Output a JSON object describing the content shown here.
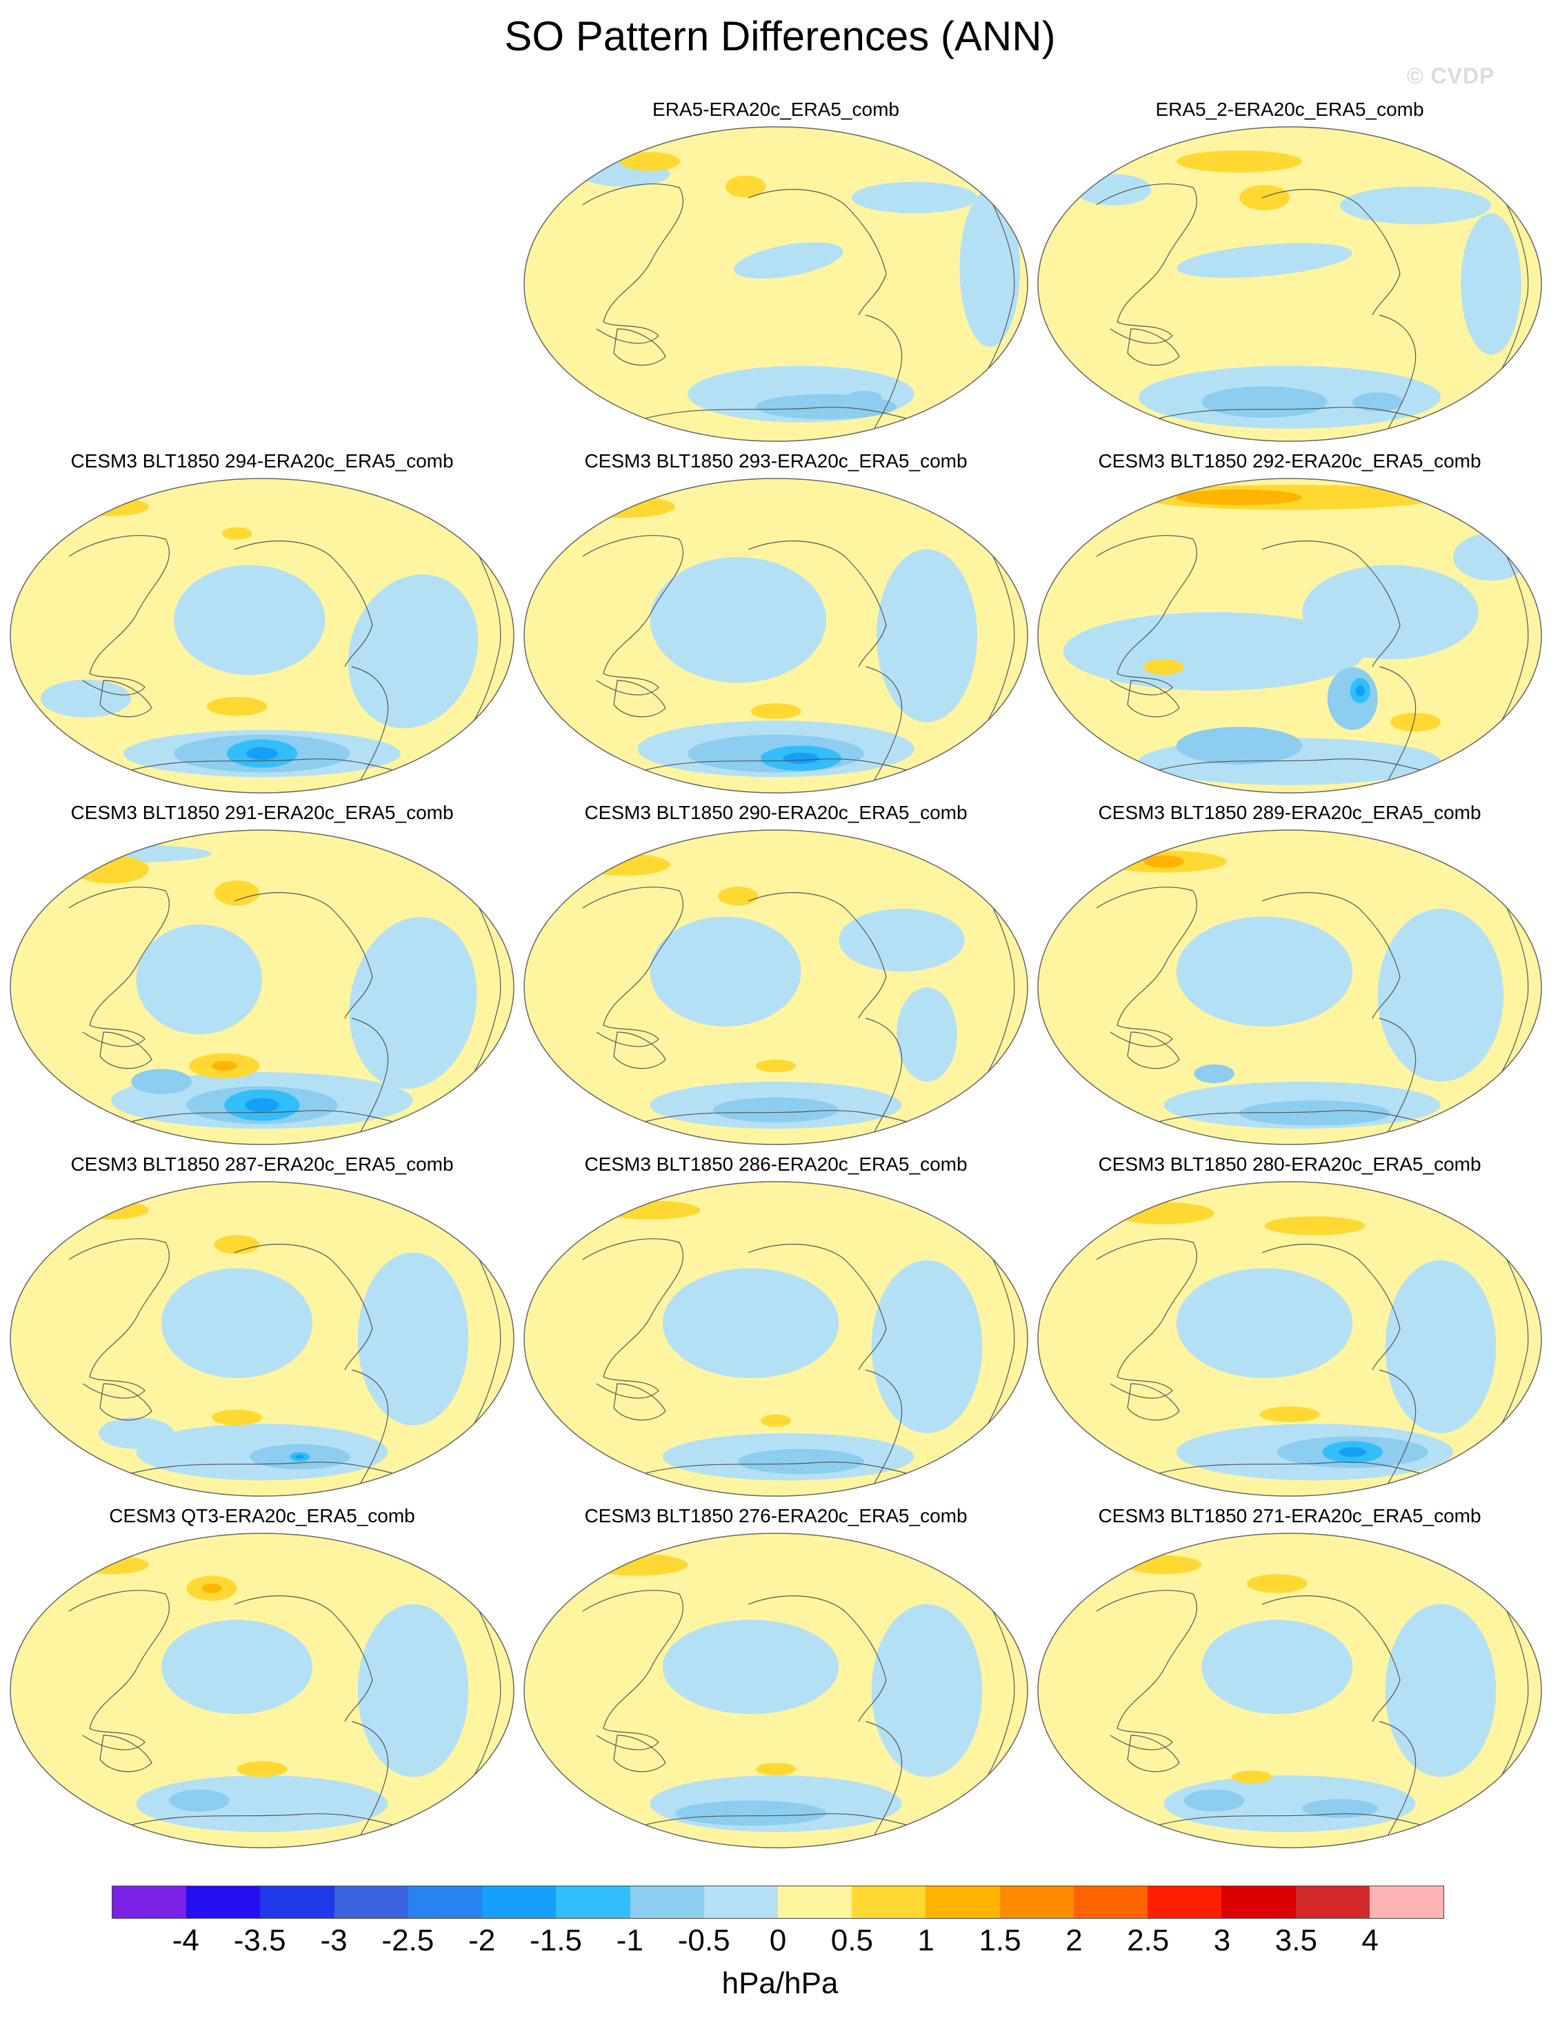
{
  "title": "SO Pattern Differences (ANN)",
  "watermark": "© CVDP",
  "panels": [
    {
      "title": "ERA5-ERA20c_ERA5_comb",
      "variant": 0
    },
    {
      "title": "ERA5_2-ERA20c_ERA5_comb",
      "variant": 1
    },
    {
      "title": "CESM3 BLT1850 294-ERA20c_ERA5_comb",
      "variant": 2
    },
    {
      "title": "CESM3 BLT1850 293-ERA20c_ERA5_comb",
      "variant": 3
    },
    {
      "title": "CESM3 BLT1850 292-ERA20c_ERA5_comb",
      "variant": 4
    },
    {
      "title": "CESM3 BLT1850 291-ERA20c_ERA5_comb",
      "variant": 5
    },
    {
      "title": "CESM3 BLT1850 290-ERA20c_ERA5_comb",
      "variant": 6
    },
    {
      "title": "CESM3 BLT1850 289-ERA20c_ERA5_comb",
      "variant": 7
    },
    {
      "title": "CESM3 BLT1850 287-ERA20c_ERA5_comb",
      "variant": 8
    },
    {
      "title": "CESM3 BLT1850 286-ERA20c_ERA5_comb",
      "variant": 9
    },
    {
      "title": "CESM3 BLT1850 280-ERA20c_ERA5_comb",
      "variant": 10
    },
    {
      "title": "CESM3 QT3-ERA20c_ERA5_comb",
      "variant": 11
    },
    {
      "title": "CESM3 BLT1850 276-ERA20c_ERA5_comb",
      "variant": 12
    },
    {
      "title": "CESM3 BLT1850 271-ERA20c_ERA5_comb",
      "variant": 13
    }
  ],
  "colorbar": {
    "colors": [
      "#7a22e6",
      "#2410f0",
      "#1e3ae8",
      "#3c64dc",
      "#2882f0",
      "#14a0f8",
      "#32befa",
      "#8ccdf0",
      "#b4e0f5",
      "#fff5a0",
      "#ffd932",
      "#ffb400",
      "#ff8c00",
      "#ff6400",
      "#ff1e00",
      "#dc0000",
      "#d22828",
      "#ffb4b4"
    ],
    "labels": [
      "-4",
      "-3.5",
      "-3",
      "-2.5",
      "-2",
      "-1.5",
      "-1",
      "-0.5",
      "0",
      "0.5",
      "1",
      "1.5",
      "2",
      "2.5",
      "3",
      "3.5",
      "4"
    ],
    "units": "hPa/hPa"
  },
  "map_colors": {
    "background": "#fff5a0",
    "neg_light": "#b4e0f5",
    "neg_mid": "#8ccdf0",
    "neg_strong": "#32befa",
    "neg_deep": "#14a0f8",
    "pos_mid": "#ffd932",
    "pos_strong": "#ffb400",
    "pos_deep": "#ff8c00"
  }
}
